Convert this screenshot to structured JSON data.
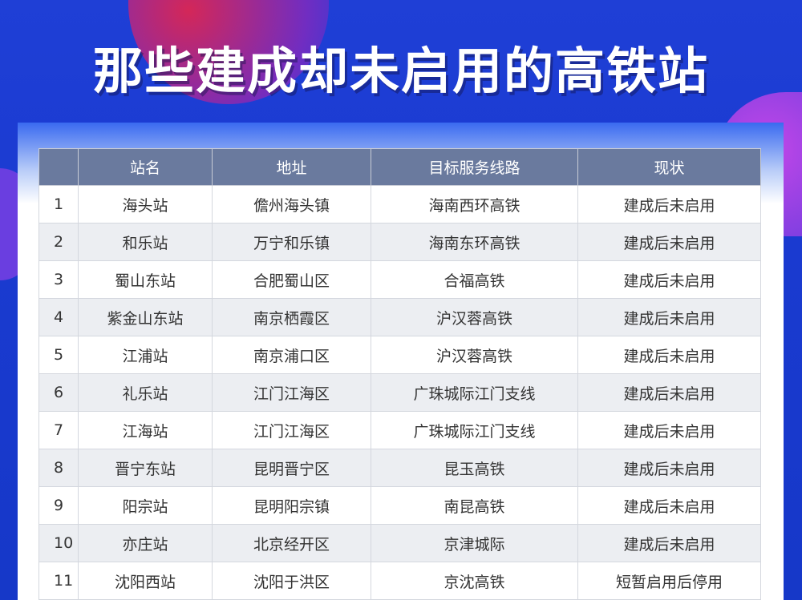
{
  "title": "那些建成却未启用的高铁站",
  "table": {
    "headers": [
      "",
      "站名",
      "地址",
      "目标服务线路",
      "现状"
    ],
    "rows": [
      [
        "1",
        "海头站",
        "儋州海头镇",
        "海南西环高铁",
        "建成后未启用"
      ],
      [
        "2",
        "和乐站",
        "万宁和乐镇",
        "海南东环高铁",
        "建成后未启用"
      ],
      [
        "3",
        "蜀山东站",
        "合肥蜀山区",
        "合福高铁",
        "建成后未启用"
      ],
      [
        "4",
        "紫金山东站",
        "南京栖霞区",
        "沪汉蓉高铁",
        "建成后未启用"
      ],
      [
        "5",
        "江浦站",
        "南京浦口区",
        "沪汉蓉高铁",
        "建成后未启用"
      ],
      [
        "6",
        "礼乐站",
        "江门江海区",
        "广珠城际江门支线",
        "建成后未启用"
      ],
      [
        "7",
        "江海站",
        "江门江海区",
        "广珠城际江门支线",
        "建成后未启用"
      ],
      [
        "8",
        "晋宁东站",
        "昆明晋宁区",
        "昆玉高铁",
        "建成后未启用"
      ],
      [
        "9",
        "阳宗站",
        "昆明阳宗镇",
        "南昆高铁",
        "建成后未启用"
      ],
      [
        "10",
        "亦庄站",
        "北京经开区",
        "京津城际",
        "建成后未启用"
      ],
      [
        "11",
        "沈阳西站",
        "沈阳于洪区",
        "京沈高铁",
        "短暂启用后停用"
      ]
    ]
  }
}
